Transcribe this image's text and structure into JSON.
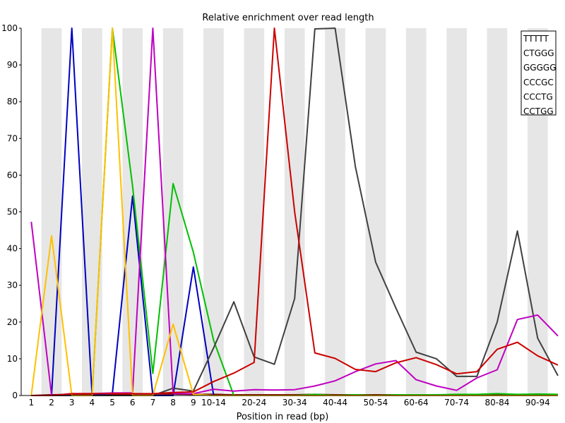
{
  "chart_data": {
    "type": "line",
    "title": "Relative enrichment over read length",
    "xlabel": "Position in read (bp)",
    "ylabel": "",
    "ylim": [
      0,
      100
    ],
    "y_ticks": [
      0,
      10,
      20,
      30,
      40,
      50,
      60,
      70,
      80,
      90,
      100
    ],
    "x_positions": [
      "1",
      "2",
      "3",
      "4",
      "5",
      "6",
      "7",
      "8",
      "9",
      "10-14",
      "15-19",
      "20-24",
      "25-29",
      "30-34",
      "35-39",
      "40-44",
      "45-49",
      "50-54",
      "55-59",
      "60-64",
      "65-69",
      "70-74",
      "75-79",
      "80-84",
      "85-89",
      "90-94",
      "95-98"
    ],
    "x_tick_labels": [
      "1",
      "2",
      "3",
      "4",
      "5",
      "6",
      "7",
      "8",
      "9",
      "10-14",
      "",
      "20-24",
      "",
      "30-34",
      "",
      "40-44",
      "",
      "50-54",
      "",
      "60-64",
      "",
      "70-74",
      "",
      "80-84",
      "",
      "90-94",
      ""
    ],
    "grid": "alternating vertical bands",
    "legend_position": "top-right",
    "series": [
      {
        "name": "TTTTT",
        "color": "#800000",
        "values": [
          0,
          0.2,
          0.3,
          0.4,
          0.3,
          0.4,
          0.4,
          0.4,
          0.3,
          0.3,
          0.2,
          0.2,
          0.2,
          0.2,
          0.3,
          0.2,
          0.2,
          0.2,
          0.2,
          0.2,
          0.2,
          0.2,
          0.2,
          0.3,
          0.2,
          0.2,
          0.2
        ]
      },
      {
        "name": "CTGGG",
        "color": "#0000c0",
        "values": [
          0,
          0,
          100,
          0,
          0.5,
          54.3,
          0,
          0,
          35,
          0,
          0,
          0,
          0,
          0,
          0,
          0,
          0,
          0,
          0,
          0,
          0,
          0,
          0,
          0,
          0,
          0,
          0
        ]
      },
      {
        "name": "GGGGG",
        "color": "#00c000",
        "values": [
          0,
          0,
          0,
          0,
          100,
          57,
          6,
          57.7,
          39,
          15,
          0,
          0,
          0,
          0,
          0.3,
          0,
          0.2,
          0,
          0.2,
          0.2,
          0.2,
          0.3,
          0.3,
          0.5,
          0.3,
          0.4,
          0.3
        ]
      },
      {
        "name": "CCCGC",
        "color": "#404040",
        "values": [
          0,
          0,
          0,
          0,
          0,
          0,
          0,
          2,
          1.2,
          13,
          25.5,
          10.5,
          8.5,
          26.4,
          99.8,
          100,
          62.3,
          36.3,
          23.8,
          11.8,
          10,
          5.2,
          5.2,
          20,
          44.8,
          15.6,
          5.4
        ]
      },
      {
        "name": "CCCTG",
        "color": "#c000c0",
        "values": [
          47.3,
          0,
          0.5,
          0.5,
          0.7,
          0.7,
          100,
          0.5,
          0.5,
          1.7,
          1.2,
          1.6,
          1.5,
          1.6,
          2.6,
          4,
          6.5,
          8.6,
          9.5,
          4.3,
          2.6,
          1.4,
          4.8,
          7,
          20.7,
          21.9,
          16.2
        ]
      },
      {
        "name": "CCTGG",
        "color": "#ffc000",
        "values": [
          0,
          43.5,
          0,
          0,
          100,
          0,
          0,
          19.4,
          0.3,
          0,
          0,
          0,
          0,
          0,
          0,
          0,
          0,
          0,
          0,
          0,
          0,
          0,
          0,
          0,
          0,
          0,
          0
        ]
      },
      {
        "name": "",
        "color": "#cc0000",
        "values": [
          0,
          0,
          0.5,
          0.5,
          0.5,
          0.5,
          0.5,
          0.8,
          1,
          3.8,
          6.1,
          9,
          100,
          50,
          11.6,
          10.1,
          7.1,
          6.5,
          8.9,
          10.3,
          8.4,
          5.9,
          6.5,
          12.6,
          14.5,
          10.8,
          8.3
        ]
      }
    ]
  }
}
